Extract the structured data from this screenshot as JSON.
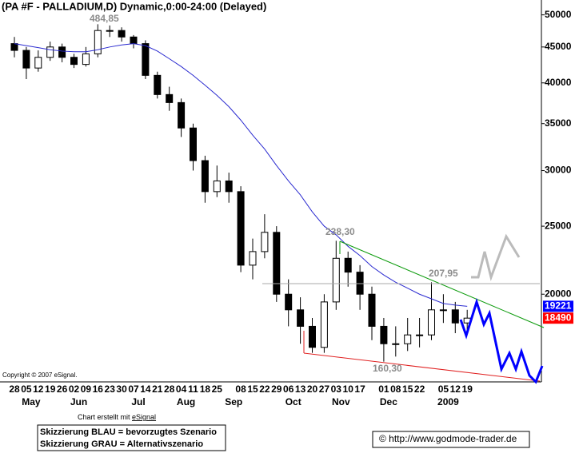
{
  "chart_data": {
    "type": "candlestick",
    "title": "(PA #F - PALLADIUM,D) Dynamic,0:00-24:00 (Delayed)",
    "categories": [
      "28",
      "05",
      "12",
      "19",
      "26",
      "02",
      "09",
      "16",
      "23",
      "30",
      "07",
      "14",
      "21",
      "28",
      "04",
      "11",
      "18",
      "25",
      null,
      "08",
      "15",
      "22",
      "29",
      "06",
      "13",
      "20",
      "27",
      "03",
      "10",
      "17",
      null,
      "01",
      "08",
      "15",
      "22",
      null,
      "05",
      "12",
      "19"
    ],
    "month_labels": [
      null,
      "May",
      null,
      null,
      null,
      "Jun",
      null,
      null,
      null,
      null,
      "Jul",
      null,
      null,
      null,
      "Aug",
      null,
      null,
      null,
      "Sep",
      null,
      null,
      null,
      null,
      "Oct",
      null,
      null,
      null,
      "Nov",
      null,
      null,
      null,
      "Dec",
      null,
      null,
      null,
      null,
      "2009",
      null,
      null
    ],
    "open": [
      45500,
      44500,
      42000,
      43500,
      45000,
      43500,
      42500,
      44000,
      47500,
      47500,
      46500,
      45500,
      41000,
      38500,
      37500,
      34500,
      31000,
      28000,
      29000,
      28000,
      22000,
      23000,
      24500,
      20000,
      19000,
      18000,
      16800,
      19500,
      22500,
      21500,
      20000,
      18000,
      17000,
      17000,
      17500,
      17500,
      19000,
      19000,
      18200
    ],
    "high": [
      46500,
      45000,
      44500,
      45800,
      45500,
      44000,
      45000,
      48485,
      48300,
      48000,
      46800,
      46000,
      41500,
      39500,
      38000,
      35000,
      31500,
      30500,
      29800,
      28500,
      24000,
      26000,
      25000,
      21000,
      19800,
      18500,
      20000,
      23830,
      23000,
      22000,
      20500,
      18500,
      18000,
      18500,
      18500,
      20795,
      20000,
      19500,
      19000
    ],
    "low": [
      43500,
      40500,
      41500,
      43000,
      42800,
      42000,
      42200,
      43500,
      46500,
      45800,
      44800,
      40500,
      38000,
      36500,
      33500,
      30000,
      27000,
      27500,
      27000,
      21500,
      21000,
      22500,
      19500,
      18000,
      17000,
      16500,
      16500,
      19000,
      20500,
      19000,
      17200,
      16030,
      16300,
      16600,
      16800,
      17200,
      18200,
      17600,
      17800
    ],
    "close": [
      44500,
      42000,
      43500,
      45000,
      43500,
      42500,
      44000,
      47500,
      47500,
      46500,
      45500,
      41000,
      38500,
      37500,
      34500,
      31000,
      28000,
      29000,
      28000,
      22000,
      23000,
      24500,
      20000,
      19000,
      18000,
      16800,
      19500,
      22500,
      21500,
      20000,
      18000,
      17000,
      17000,
      17500,
      17500,
      19000,
      19000,
      18200,
      18490
    ],
    "series": [
      {
        "name": "MA",
        "color": "#2b2bd0",
        "values": [
          45500,
          45200,
          44900,
          44600,
          44400,
          44300,
          44300,
          44600,
          45000,
          45300,
          45500,
          45200,
          44400,
          43300,
          42200,
          41000,
          39700,
          38400,
          37000,
          35400,
          33700,
          32200,
          30500,
          29000,
          27700,
          26200,
          25000,
          24300,
          23400,
          22700,
          21900,
          21300,
          20800,
          20400,
          20000,
          19700,
          19400,
          19300,
          19221
        ]
      }
    ],
    "last_labels": [
      {
        "value": 19221,
        "color": "#0000ff"
      },
      {
        "value": 18490,
        "color": "#ff0000"
      }
    ],
    "ylim": [
      15000,
      52500
    ],
    "yticks": [
      20000,
      25000,
      30000,
      35000,
      40000,
      45000,
      50000
    ],
    "log_scale": true,
    "annotations": [
      "484,85",
      "238,30",
      "207,95",
      "160,30"
    ],
    "copyright": "Copyright © 2007 eSignal.",
    "footer": {
      "prefix": "Chart erstellt mit ",
      "link": "eSignal"
    },
    "legend_lines": [
      "Skizzierung BLAU = bevorzugtes Szenario",
      "Skizzierung GRAU = Alternativszenario"
    ],
    "url": "© http://www.godmode-trader.de"
  }
}
